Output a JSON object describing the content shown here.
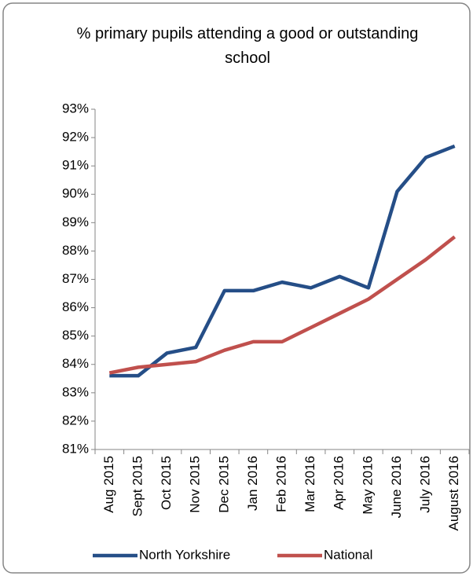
{
  "chart_data": {
    "type": "line",
    "title": "% primary pupils attending a good or outstanding school",
    "categories": [
      "Aug 2015",
      "Sept 2015",
      "Oct 2015",
      "Nov 2015",
      "Dec 2015",
      "Jan 2016",
      "Feb 2016",
      "Mar 2016",
      "Apr 2016",
      "May 2016",
      "June 2016",
      "July 2016",
      "August 2016"
    ],
    "series": [
      {
        "name": "North Yorkshire",
        "color": "#254e87",
        "values": [
          83.6,
          83.6,
          84.4,
          84.6,
          86.6,
          86.6,
          86.9,
          86.7,
          87.1,
          86.7,
          90.1,
          91.3,
          91.7
        ]
      },
      {
        "name": "National",
        "color": "#c0504d",
        "values": [
          83.7,
          83.9,
          84.0,
          84.1,
          84.5,
          84.8,
          84.8,
          85.3,
          85.8,
          86.3,
          87.0,
          87.7,
          88.5
        ]
      }
    ],
    "ylim": [
      81,
      93
    ],
    "yticks": [
      {
        "value": 81,
        "label": "81%"
      },
      {
        "value": 82,
        "label": "82%"
      },
      {
        "value": 83,
        "label": "83%"
      },
      {
        "value": 84,
        "label": "84%"
      },
      {
        "value": 85,
        "label": "85%"
      },
      {
        "value": 86,
        "label": "86%"
      },
      {
        "value": 87,
        "label": "87%"
      },
      {
        "value": 88,
        "label": "88%"
      },
      {
        "value": 89,
        "label": "89%"
      },
      {
        "value": 90,
        "label": "90%"
      },
      {
        "value": 91,
        "label": "91%"
      },
      {
        "value": 92,
        "label": "92%"
      },
      {
        "value": 93,
        "label": "93%"
      }
    ],
    "grid": false,
    "legend": "bottom"
  }
}
